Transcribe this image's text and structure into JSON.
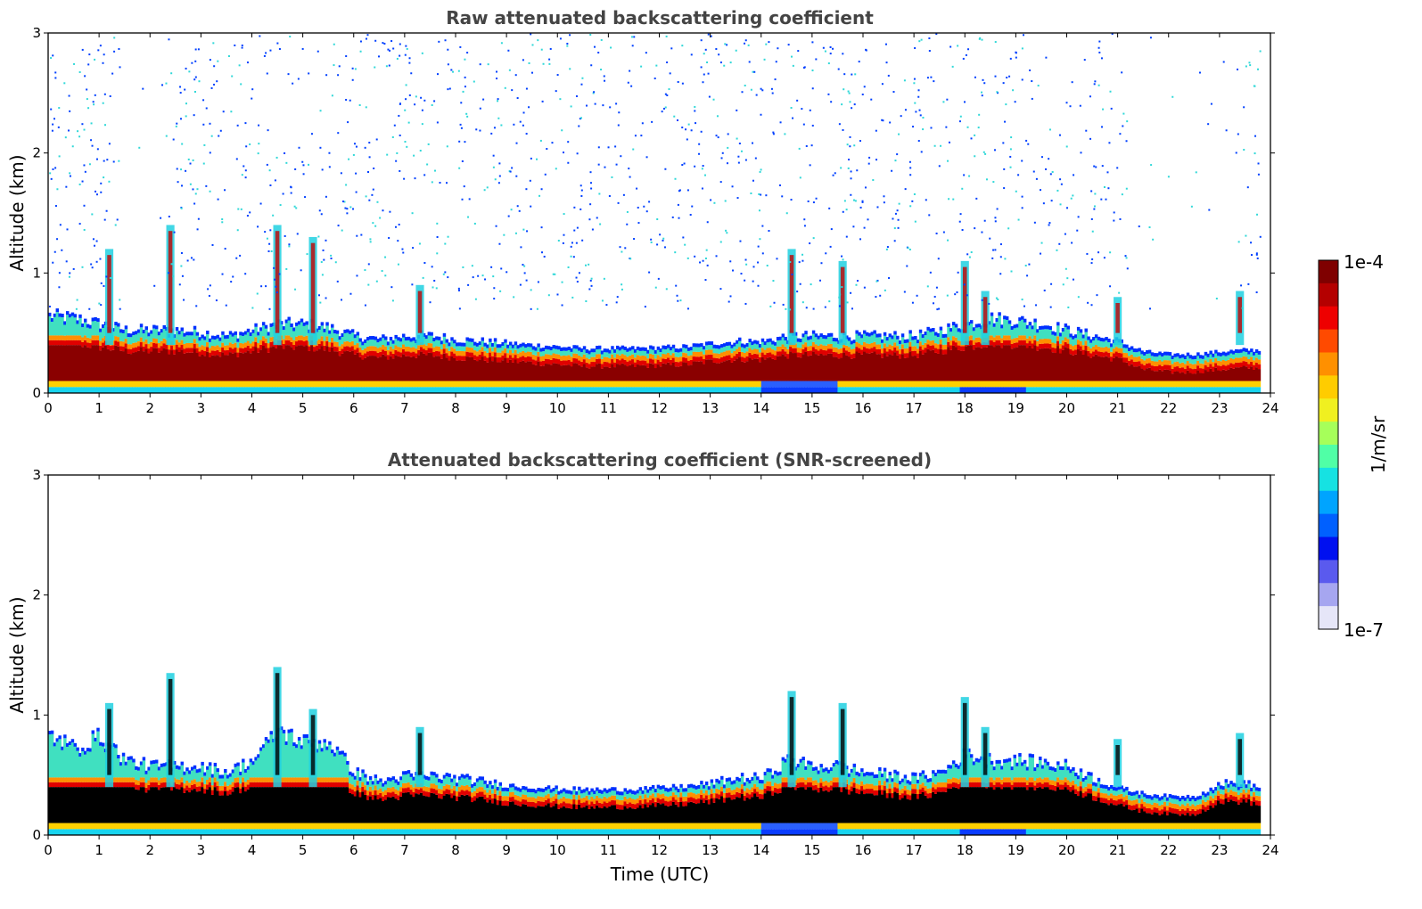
{
  "chart_data": [
    {
      "type": "heatmap",
      "title": "Raw attenuated backscattering coefficient",
      "xlabel": "",
      "ylabel": "Altitude (km)",
      "xlim": [
        0,
        24
      ],
      "ylim": [
        0,
        3
      ],
      "xticks": [
        "0",
        "1",
        "2",
        "3",
        "4",
        "5",
        "6",
        "7",
        "8",
        "9",
        "10",
        "11",
        "12",
        "13",
        "14",
        "15",
        "16",
        "17",
        "18",
        "19",
        "20",
        "21",
        "22",
        "23",
        "24"
      ],
      "yticks": [
        "0",
        "1",
        "2",
        "3"
      ],
      "screened": false,
      "layer_top_km": [
        [
          0,
          0.62
        ],
        [
          0.5,
          0.6
        ],
        [
          1,
          0.55
        ],
        [
          1.5,
          0.5
        ],
        [
          2,
          0.5
        ],
        [
          2.5,
          0.5
        ],
        [
          3,
          0.48
        ],
        [
          3.5,
          0.45
        ],
        [
          4,
          0.5
        ],
        [
          4.5,
          0.55
        ],
        [
          5,
          0.55
        ],
        [
          5.5,
          0.52
        ],
        [
          6,
          0.45
        ],
        [
          6.5,
          0.42
        ],
        [
          7,
          0.45
        ],
        [
          7.5,
          0.45
        ],
        [
          8,
          0.42
        ],
        [
          8.5,
          0.4
        ],
        [
          9,
          0.38
        ],
        [
          9.5,
          0.36
        ],
        [
          10,
          0.34
        ],
        [
          10.5,
          0.32
        ],
        [
          11,
          0.32
        ],
        [
          11.5,
          0.32
        ],
        [
          12,
          0.33
        ],
        [
          12.5,
          0.34
        ],
        [
          13,
          0.38
        ],
        [
          13.5,
          0.4
        ],
        [
          14,
          0.4
        ],
        [
          14.5,
          0.45
        ],
        [
          15,
          0.45
        ],
        [
          15.5,
          0.45
        ],
        [
          16,
          0.45
        ],
        [
          16.5,
          0.45
        ],
        [
          17,
          0.45
        ],
        [
          17.5,
          0.5
        ],
        [
          18,
          0.55
        ],
        [
          18.5,
          0.6
        ],
        [
          19,
          0.58
        ],
        [
          19.5,
          0.55
        ],
        [
          20,
          0.5
        ],
        [
          20.5,
          0.45
        ],
        [
          21,
          0.4
        ],
        [
          21.5,
          0.28
        ],
        [
          22,
          0.25
        ],
        [
          22.5,
          0.25
        ],
        [
          23,
          0.28
        ],
        [
          23.5,
          0.3
        ],
        [
          23.8,
          0.3
        ]
      ],
      "plumes": [
        {
          "t": 1.2,
          "top": 1.2
        },
        {
          "t": 2.4,
          "top": 1.4
        },
        {
          "t": 4.5,
          "top": 1.4
        },
        {
          "t": 5.2,
          "top": 1.3
        },
        {
          "t": 7.3,
          "top": 0.9
        },
        {
          "t": 14.6,
          "top": 1.2
        },
        {
          "t": 15.6,
          "top": 1.1
        },
        {
          "t": 18.0,
          "top": 1.1
        },
        {
          "t": 18.4,
          "top": 0.85
        },
        {
          "t": 21.0,
          "top": 0.8
        },
        {
          "t": 23.4,
          "top": 0.85
        }
      ]
    },
    {
      "type": "heatmap",
      "title": "Attenuated backscattering coefficient (SNR-screened)",
      "xlabel": "Time (UTC)",
      "ylabel": "Altitude (km)",
      "xlim": [
        0,
        24
      ],
      "ylim": [
        0,
        3
      ],
      "xticks": [
        "0",
        "1",
        "2",
        "3",
        "4",
        "5",
        "6",
        "7",
        "8",
        "9",
        "10",
        "11",
        "12",
        "13",
        "14",
        "15",
        "16",
        "17",
        "18",
        "19",
        "20",
        "21",
        "22",
        "23",
        "24"
      ],
      "yticks": [
        "0",
        "1",
        "2",
        "3"
      ],
      "screened": true,
      "layer_top_km": [
        [
          0,
          0.82
        ],
        [
          0.5,
          0.7
        ],
        [
          1,
          0.8
        ],
        [
          1.5,
          0.6
        ],
        [
          2,
          0.55
        ],
        [
          2.5,
          0.55
        ],
        [
          3,
          0.55
        ],
        [
          3.5,
          0.5
        ],
        [
          4,
          0.6
        ],
        [
          4.5,
          0.85
        ],
        [
          5,
          0.75
        ],
        [
          5.5,
          0.75
        ],
        [
          6,
          0.5
        ],
        [
          6.5,
          0.42
        ],
        [
          7,
          0.47
        ],
        [
          7.5,
          0.47
        ],
        [
          8,
          0.45
        ],
        [
          8.5,
          0.42
        ],
        [
          9,
          0.38
        ],
        [
          9.5,
          0.36
        ],
        [
          10,
          0.34
        ],
        [
          10.5,
          0.33
        ],
        [
          11,
          0.33
        ],
        [
          11.5,
          0.34
        ],
        [
          12,
          0.35
        ],
        [
          12.5,
          0.37
        ],
        [
          13,
          0.4
        ],
        [
          13.5,
          0.45
        ],
        [
          14,
          0.45
        ],
        [
          14.5,
          0.6
        ],
        [
          15,
          0.55
        ],
        [
          15.5,
          0.55
        ],
        [
          16,
          0.5
        ],
        [
          16.5,
          0.48
        ],
        [
          17,
          0.45
        ],
        [
          17.5,
          0.5
        ],
        [
          18,
          0.65
        ],
        [
          18.5,
          0.6
        ],
        [
          19,
          0.6
        ],
        [
          19.5,
          0.58
        ],
        [
          20,
          0.55
        ],
        [
          20.5,
          0.45
        ],
        [
          21,
          0.35
        ],
        [
          21.5,
          0.28
        ],
        [
          22,
          0.25
        ],
        [
          22.5,
          0.25
        ],
        [
          23,
          0.4
        ],
        [
          23.5,
          0.4
        ],
        [
          23.8,
          0.35
        ]
      ],
      "plumes": [
        {
          "t": 1.2,
          "top": 1.1
        },
        {
          "t": 2.4,
          "top": 1.35
        },
        {
          "t": 4.5,
          "top": 1.4
        },
        {
          "t": 5.2,
          "top": 1.05
        },
        {
          "t": 7.3,
          "top": 0.9
        },
        {
          "t": 14.6,
          "top": 1.2
        },
        {
          "t": 15.6,
          "top": 1.1
        },
        {
          "t": 18.0,
          "top": 1.15
        },
        {
          "t": 18.4,
          "top": 0.9
        },
        {
          "t": 21.0,
          "top": 0.8
        },
        {
          "t": 23.4,
          "top": 0.85
        }
      ]
    }
  ],
  "colorbar": {
    "label": "1/m/sr",
    "max_label": "1e-4",
    "min_label": "1e-7",
    "colors": [
      "#7f0000",
      "#b40000",
      "#ee0000",
      "#ff4a00",
      "#ff9000",
      "#ffcc00",
      "#f0f020",
      "#a6ff5a",
      "#50ffa6",
      "#16e2e2",
      "#00a4ff",
      "#0060ff",
      "#0010f0",
      "#5a5aee",
      "#a6a6f0",
      "#e6e6f8"
    ]
  }
}
